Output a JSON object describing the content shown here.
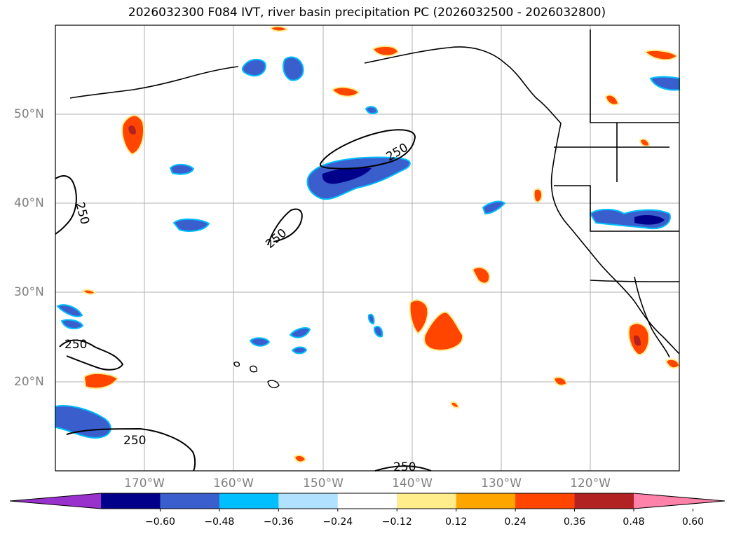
{
  "title": "2026032300 F084 IVT, river basin precipitation PC (2026032500 - 2026032800)",
  "lat_labels": [
    "50°N",
    "40°N",
    "30°N",
    "20°N"
  ],
  "lon_labels": [
    "170°W",
    "160°W",
    "150°W",
    "140°W",
    "130°W",
    "120°W"
  ],
  "contour_label": "250",
  "colorbar": {
    "levels": [
      "−0.60",
      "−0.48",
      "−0.36",
      "−0.24",
      "−0.12",
      "0.12",
      "0.24",
      "0.36",
      "0.48",
      "0.60"
    ],
    "colors": [
      "#9932cc",
      "#00008b",
      "#3a5fcd",
      "#00bfff",
      "#b0e2ff",
      "#ffffff",
      "#ffec8b",
      "#ffa500",
      "#ff4500",
      "#b22222",
      "#ff82ab"
    ]
  },
  "colors": {
    "dark_blue": "#00008b",
    "mid_blue": "#3a5fcd",
    "cyan": "#00bfff",
    "light_blue": "#b0e2ff",
    "yellow": "#ffec8b",
    "orange": "#ffa500",
    "red_orange": "#ff4500",
    "dark_red": "#b22222"
  }
}
